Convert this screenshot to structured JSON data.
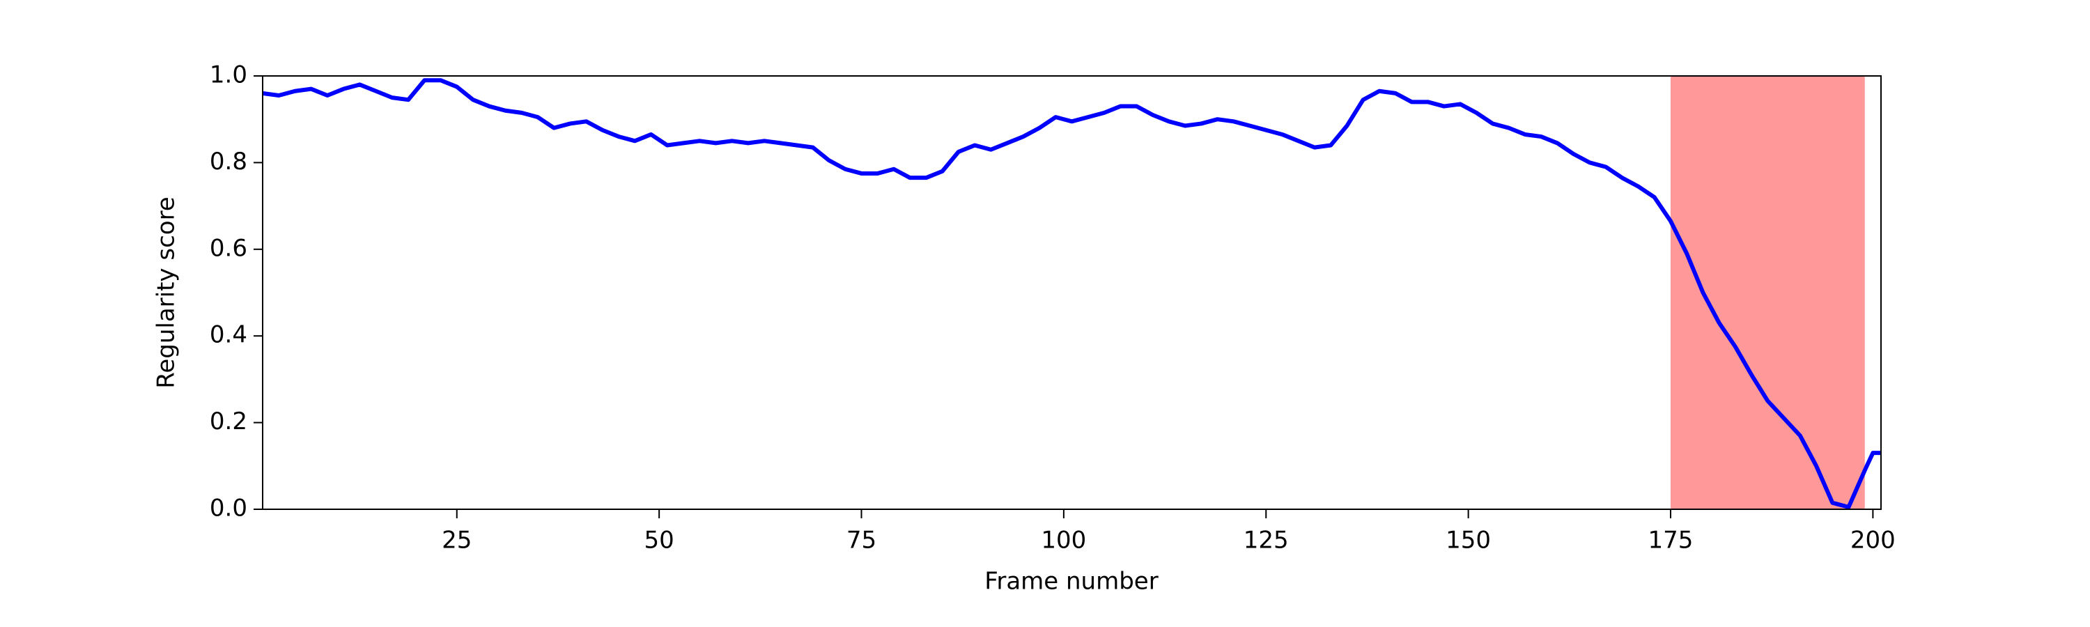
{
  "chart_data": {
    "type": "line",
    "xlabel": "Frame number",
    "ylabel": "Regularity score",
    "x": [
      1,
      3,
      5,
      7,
      9,
      11,
      13,
      15,
      17,
      19,
      21,
      23,
      25,
      27,
      29,
      31,
      33,
      35,
      37,
      39,
      41,
      43,
      45,
      47,
      49,
      51,
      53,
      55,
      57,
      59,
      61,
      63,
      65,
      67,
      69,
      71,
      73,
      75,
      77,
      79,
      81,
      83,
      85,
      87,
      89,
      91,
      93,
      95,
      97,
      99,
      101,
      103,
      105,
      107,
      109,
      111,
      113,
      115,
      117,
      119,
      121,
      123,
      125,
      127,
      129,
      131,
      133,
      135,
      137,
      139,
      141,
      143,
      145,
      147,
      149,
      151,
      153,
      155,
      157,
      159,
      161,
      163,
      165,
      167,
      169,
      171,
      173,
      175,
      177,
      179,
      181,
      183,
      185,
      187,
      189,
      191,
      193,
      195,
      197,
      199,
      200,
      201
    ],
    "series": [
      {
        "color": "#0000ff",
        "values": [
          0.96,
          0.955,
          0.965,
          0.97,
          0.955,
          0.97,
          0.98,
          0.965,
          0.95,
          0.945,
          0.99,
          0.99,
          0.975,
          0.945,
          0.93,
          0.92,
          0.915,
          0.905,
          0.88,
          0.89,
          0.895,
          0.875,
          0.86,
          0.85,
          0.865,
          0.84,
          0.845,
          0.85,
          0.845,
          0.85,
          0.845,
          0.85,
          0.845,
          0.84,
          0.835,
          0.805,
          0.785,
          0.775,
          0.775,
          0.785,
          0.765,
          0.765,
          0.78,
          0.825,
          0.84,
          0.83,
          0.845,
          0.86,
          0.88,
          0.905,
          0.895,
          0.905,
          0.915,
          0.93,
          0.93,
          0.91,
          0.895,
          0.885,
          0.89,
          0.9,
          0.895,
          0.885,
          0.875,
          0.865,
          0.85,
          0.835,
          0.84,
          0.885,
          0.945,
          0.965,
          0.96,
          0.94,
          0.94,
          0.93,
          0.935,
          0.915,
          0.89,
          0.88,
          0.865,
          0.86,
          0.845,
          0.82,
          0.8,
          0.79,
          0.765,
          0.745,
          0.72,
          0.665,
          0.59,
          0.5,
          0.43,
          0.375,
          0.31,
          0.25,
          0.21,
          0.17,
          0.1,
          0.015,
          0.005,
          0.09,
          0.13,
          0.13
        ]
      }
    ],
    "highlight": {
      "x0": 175,
      "x1": 199,
      "color": "#ff9999"
    },
    "xlim": [
      1,
      201
    ],
    "ylim": [
      0,
      1
    ],
    "xticks": [
      25,
      50,
      75,
      100,
      125,
      150,
      175,
      200
    ],
    "yticks": [
      {
        "value": 0,
        "label": "0.0"
      },
      {
        "value": 0.2,
        "label": "0.2"
      },
      {
        "value": 0.4,
        "label": "0.4"
      },
      {
        "value": 0.6,
        "label": "0.6"
      },
      {
        "value": 0.8,
        "label": "0.8"
      },
      {
        "value": 1,
        "label": "1.0"
      }
    ]
  }
}
